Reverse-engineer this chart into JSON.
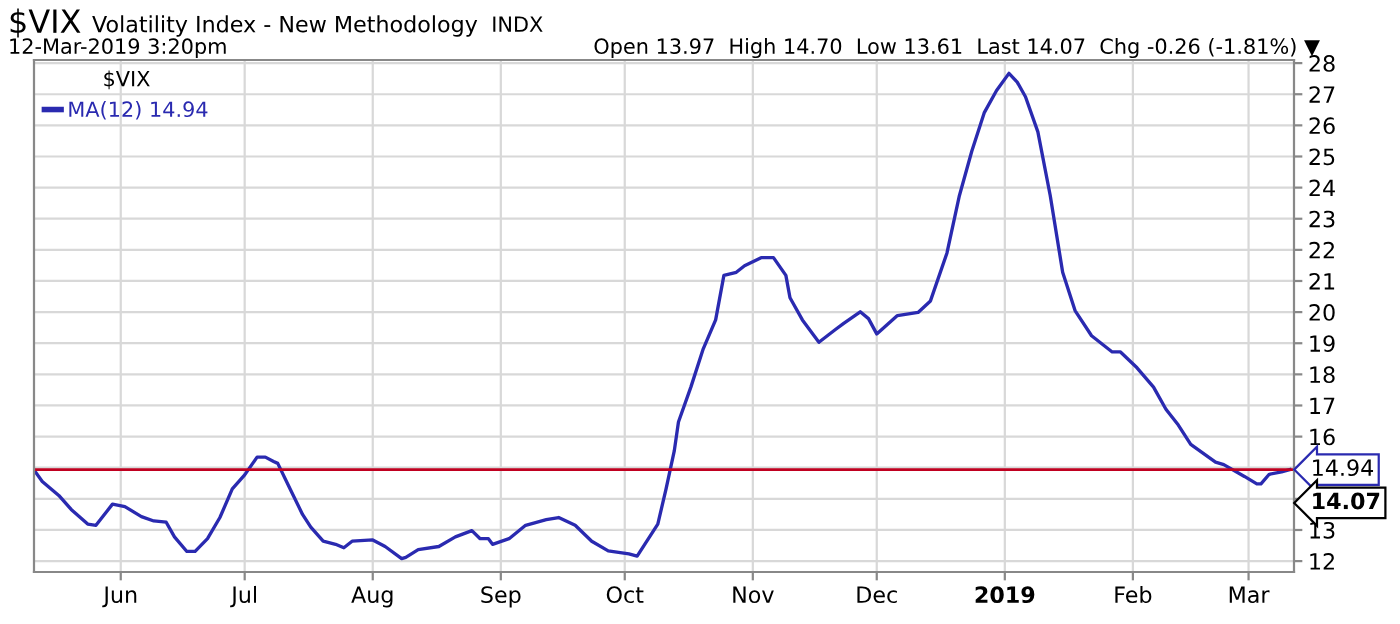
{
  "chart_data": {
    "type": "line",
    "title": "$VIX",
    "subtitle": "Volatility Index - New Methodology",
    "legend_title": "$VIX",
    "annotations": [
      "INDX",
      "12-Mar-2019 3:20pm",
      "Open 13.97  High 14.70  Low 13.61  Last 14.07  Chg -0.26 (-1.81%) ▼",
      "14.07"
    ],
    "series": [
      {
        "name": "MA(12) 14.94",
        "color": "#2a2ab0",
        "x": [
          "2018-05-11",
          "2018-05-13",
          "2018-05-17",
          "2018-05-20",
          "2018-05-24",
          "2018-05-26",
          "2018-05-30",
          "2018-06-02",
          "2018-06-06",
          "2018-06-09",
          "2018-06-12",
          "2018-06-14",
          "2018-06-17",
          "2018-06-19",
          "2018-06-22",
          "2018-06-25",
          "2018-06-28",
          "2018-07-01",
          "2018-07-04",
          "2018-07-06",
          "2018-07-08",
          "2018-07-09",
          "2018-07-12",
          "2018-07-15",
          "2018-07-17",
          "2018-07-20",
          "2018-07-23",
          "2018-07-25",
          "2018-07-27",
          "2018-08-01",
          "2018-08-04",
          "2018-08-08",
          "2018-08-09",
          "2018-08-12",
          "2018-08-17",
          "2018-08-21",
          "2018-08-25",
          "2018-08-27",
          "2018-08-29",
          "2018-08-30",
          "2018-09-03",
          "2018-09-07",
          "2018-09-12",
          "2018-09-15",
          "2018-09-19",
          "2018-09-23",
          "2018-09-27",
          "2018-10-02",
          "2018-10-04",
          "2018-10-09",
          "2018-10-11",
          "2018-10-13",
          "2018-10-14",
          "2018-10-17",
          "2018-10-20",
          "2018-10-23",
          "2018-10-25",
          "2018-10-28",
          "2018-10-30",
          "2018-11-03",
          "2018-11-06",
          "2018-11-09",
          "2018-11-10",
          "2018-11-13",
          "2018-11-17",
          "2018-11-21",
          "2018-11-23",
          "2018-11-27",
          "2018-11-29",
          "2018-12-01",
          "2018-12-06",
          "2018-12-11",
          "2018-12-14",
          "2018-12-18",
          "2018-12-21",
          "2018-12-24",
          "2018-12-27",
          "2018-12-30",
          "2019-01-02",
          "2019-01-04",
          "2019-01-06",
          "2019-01-09",
          "2019-01-12",
          "2019-01-15",
          "2019-01-18",
          "2019-01-22",
          "2019-01-27",
          "2019-01-29",
          "2019-02-02",
          "2019-02-06",
          "2019-02-09",
          "2019-02-12",
          "2019-02-15",
          "2019-02-21",
          "2019-02-23",
          "2019-02-28",
          "2019-03-03",
          "2019-03-04",
          "2019-03-06",
          "2019-03-09",
          "2019-03-11"
        ],
        "values": [
          14.93,
          14.56,
          14.11,
          13.66,
          13.19,
          13.15,
          13.83,
          13.75,
          13.43,
          13.29,
          13.25,
          12.78,
          12.31,
          12.31,
          12.72,
          13.4,
          14.32,
          14.77,
          15.34,
          15.34,
          15.2,
          15.14,
          14.32,
          13.5,
          13.09,
          12.64,
          12.54,
          12.43,
          12.64,
          12.68,
          12.47,
          12.08,
          12.12,
          12.37,
          12.47,
          12.78,
          12.98,
          12.72,
          12.72,
          12.54,
          12.72,
          13.15,
          13.33,
          13.4,
          13.15,
          12.64,
          12.33,
          12.23,
          12.16,
          13.19,
          14.32,
          15.55,
          16.47,
          17.59,
          18.82,
          19.75,
          21.18,
          21.28,
          21.49,
          21.75,
          21.75,
          21.18,
          20.46,
          19.75,
          19.03,
          19.44,
          19.64,
          20.01,
          19.79,
          19.3,
          19.89,
          19.99,
          20.36,
          21.9,
          23.74,
          25.17,
          26.4,
          27.12,
          27.67,
          27.39,
          26.92,
          25.79,
          23.74,
          21.28,
          20.05,
          19.24,
          18.72,
          18.72,
          18.21,
          17.59,
          16.88,
          16.37,
          15.75,
          15.18,
          15.1,
          14.72,
          14.48,
          14.48,
          14.79,
          14.87,
          14.94
        ]
      }
    ],
    "xlim": [
      "2018-05-11",
      "2019-03-12"
    ],
    "xticks": [
      {
        "value": "2018-06-01",
        "label": "Jun"
      },
      {
        "value": "2018-07-01",
        "label": "Jul"
      },
      {
        "value": "2018-08-01",
        "label": "Aug"
      },
      {
        "value": "2018-09-01",
        "label": "Sep"
      },
      {
        "value": "2018-10-01",
        "label": "Oct"
      },
      {
        "value": "2018-11-01",
        "label": "Nov"
      },
      {
        "value": "2018-12-01",
        "label": "Dec"
      },
      {
        "value": "2019-01-01",
        "label": "2019"
      },
      {
        "value": "2019-02-01",
        "label": "Feb"
      },
      {
        "value": "2019-03-01",
        "label": "Mar"
      }
    ],
    "ylim": [
      11.65,
      28.1
    ],
    "yticks": [
      12,
      13,
      {
        "value": 14,
        "label": null
      },
      {
        "value": 15,
        "label": null
      },
      16,
      17,
      18,
      19,
      20,
      21,
      22,
      23,
      24,
      25,
      26,
      27,
      28
    ],
    "ref_lines": [
      {
        "axis": "y",
        "value": 14.94,
        "label": "14.94",
        "color": "#c00020"
      }
    ],
    "grid": true,
    "legend": "top left"
  }
}
